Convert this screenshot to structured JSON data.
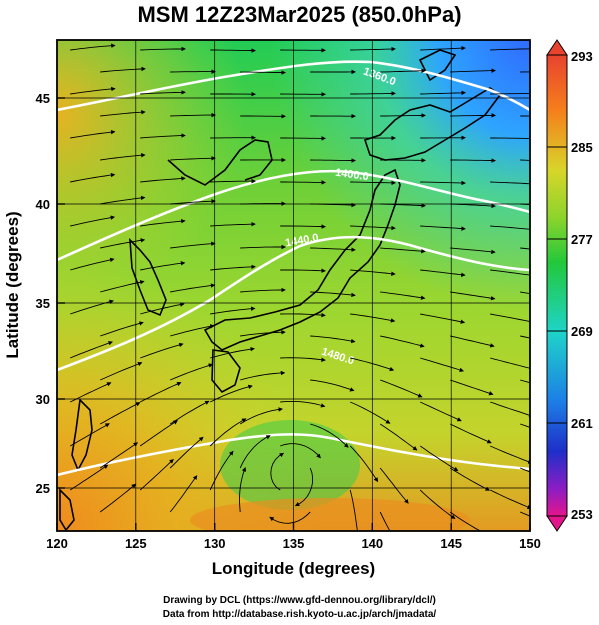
{
  "title": "MSM 12Z23Mar2025 (850.0hPa)",
  "axes": {
    "xlabel": "Longitude (degrees)",
    "ylabel": "Latitude  (degrees)",
    "xticks": [
      "120",
      "125",
      "130",
      "135",
      "140",
      "145",
      "150"
    ],
    "yticks": [
      "25",
      "30",
      "35",
      "40",
      "45"
    ]
  },
  "colorbar": {
    "labels": [
      "293",
      "285",
      "277",
      "269",
      "261",
      "253"
    ],
    "min": 253,
    "max": 293
  },
  "contours": {
    "labels": [
      "1360.0",
      "1400.0",
      "1440.0",
      "1480.0"
    ]
  },
  "credits": {
    "line1": "Drawing by DCL (https://www.gfd-dennou.org/library/dcl/)",
    "line2": "Data from http://database.rish.kyoto-u.ac.jp/arch/jmadata/"
  },
  "chart_data": {
    "type": "heatmap",
    "title": "MSM 12Z23Mar2025 (850.0hPa)",
    "xlabel": "Longitude (degrees)",
    "ylabel": "Latitude  (degrees)",
    "xlim": [
      120,
      150
    ],
    "ylim": [
      22.4,
      47.6
    ],
    "colorbar_range": [
      253,
      293
    ],
    "colorbar_ticks": [
      253,
      261,
      269,
      277,
      285,
      293
    ],
    "contour_levels": [
      1360,
      1400,
      1440,
      1480
    ],
    "grid": true
  }
}
